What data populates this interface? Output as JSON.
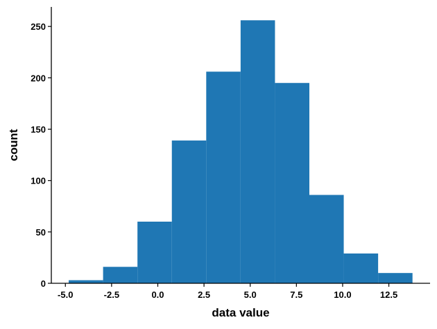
{
  "chart_data": {
    "type": "bar",
    "subtype": "histogram",
    "bin_edges": [
      -4.82,
      -2.96,
      -1.1,
      0.76,
      2.62,
      4.48,
      6.34,
      8.2,
      10.06,
      11.92,
      13.78
    ],
    "values": [
      3,
      16,
      60,
      139,
      206,
      256,
      195,
      86,
      29,
      10
    ],
    "title": "",
    "xlabel": "data value",
    "ylabel": "count",
    "xlim": [
      -5.76,
      14.73
    ],
    "ylim": [
      0,
      269
    ],
    "xticks": [
      -5.0,
      -2.5,
      0.0,
      2.5,
      5.0,
      7.5,
      10.0,
      12.5
    ],
    "xtick_labels": [
      "-5.0",
      "-2.5",
      "0.0",
      "2.5",
      "5.0",
      "7.5",
      "10.0",
      "12.5"
    ],
    "yticks": [
      0,
      50,
      100,
      150,
      200,
      250
    ],
    "ytick_labels": [
      "0",
      "50",
      "100",
      "150",
      "200",
      "250"
    ],
    "grid": false,
    "bar_color": "#1f77b4",
    "spines": [
      "left",
      "bottom"
    ]
  }
}
